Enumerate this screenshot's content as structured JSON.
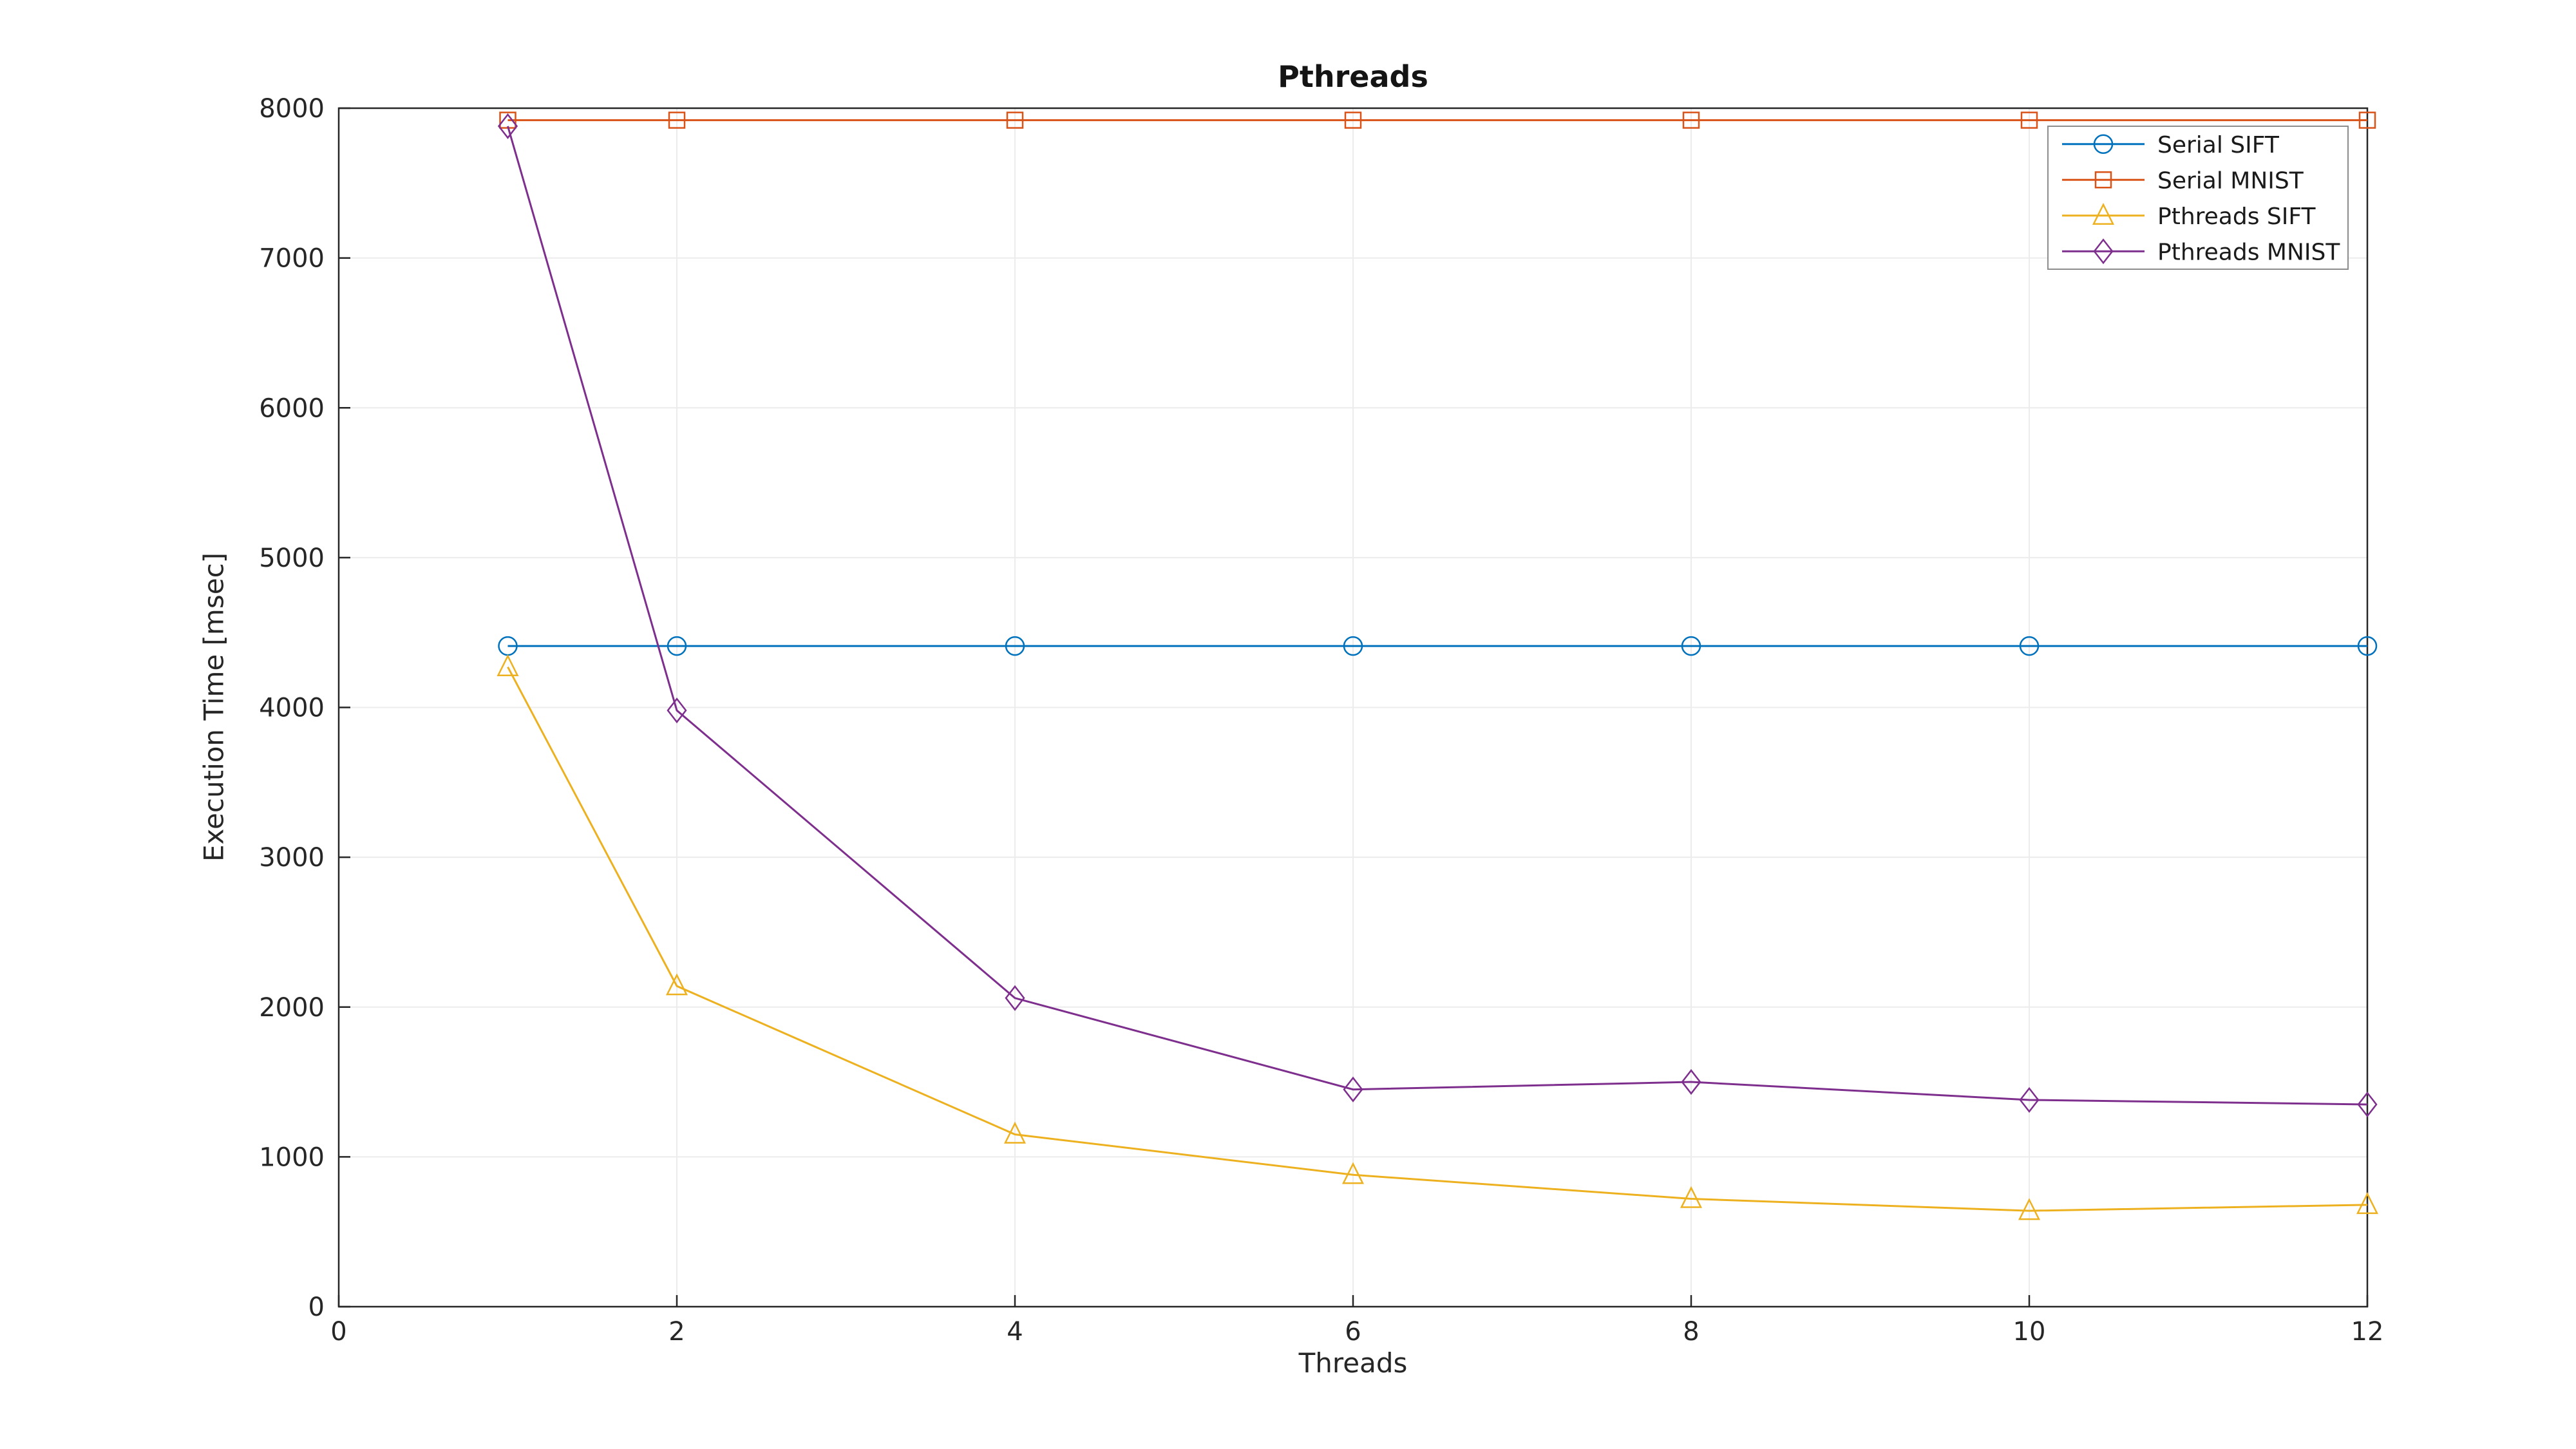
{
  "chart_data": {
    "type": "line",
    "title": "Pthreads",
    "xlabel": "Threads",
    "ylabel": "Execution Time [msec]",
    "xlim": [
      0,
      12
    ],
    "ylim": [
      0,
      8000
    ],
    "xticks": [
      0,
      2,
      4,
      6,
      8,
      10,
      12
    ],
    "yticks": [
      0,
      1000,
      2000,
      3000,
      4000,
      5000,
      6000,
      7000,
      8000
    ],
    "grid": true,
    "legend_position": "top-right",
    "x": [
      1,
      2,
      4,
      6,
      8,
      10,
      12
    ],
    "series": [
      {
        "name": "Serial SIFT",
        "color": "#0072BD",
        "marker": "circle",
        "values": [
          4410,
          4410,
          4410,
          4410,
          4410,
          4410,
          4410
        ]
      },
      {
        "name": "Serial MNIST",
        "color": "#D95319",
        "marker": "square",
        "values": [
          7920,
          7920,
          7920,
          7920,
          7920,
          7920,
          7920
        ]
      },
      {
        "name": "Pthreads SIFT",
        "color": "#EDB120",
        "marker": "triangle",
        "values": [
          4270,
          2140,
          1150,
          880,
          720,
          640,
          680
        ]
      },
      {
        "name": "Pthreads MNIST",
        "color": "#7E2F8E",
        "marker": "diamond",
        "values": [
          7880,
          3980,
          2060,
          1450,
          1500,
          1380,
          1350
        ]
      }
    ]
  }
}
